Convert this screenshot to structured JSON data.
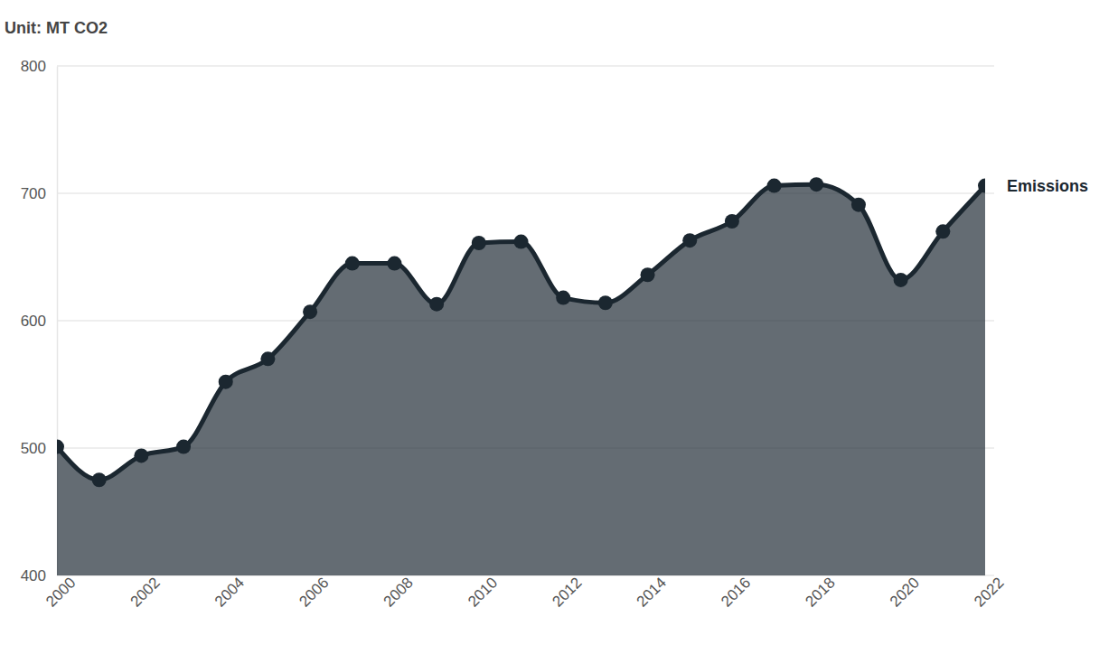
{
  "chart_data": {
    "type": "area",
    "title": "Unit: MT CO2",
    "x": [
      2000,
      2001,
      2002,
      2003,
      2004,
      2005,
      2006,
      2007,
      2008,
      2009,
      2010,
      2011,
      2012,
      2013,
      2014,
      2015,
      2016,
      2017,
      2018,
      2019,
      2020,
      2021,
      2022
    ],
    "series": [
      {
        "name": "Emissions",
        "color": "#1b2730",
        "marker": "circle",
        "values": [
          501,
          475,
          494,
          501,
          552,
          570,
          607,
          645,
          645,
          613,
          661,
          662,
          618,
          614,
          636,
          663,
          678,
          706,
          707,
          691,
          632,
          670,
          706
        ]
      }
    ],
    "xlim": [
      2000,
      2022
    ],
    "xticks": [
      2000,
      2002,
      2004,
      2006,
      2008,
      2010,
      2012,
      2014,
      2016,
      2018,
      2020,
      2022
    ],
    "ylim": [
      400,
      800
    ],
    "yticks": [
      400,
      500,
      600,
      700,
      800
    ],
    "grid": true
  }
}
